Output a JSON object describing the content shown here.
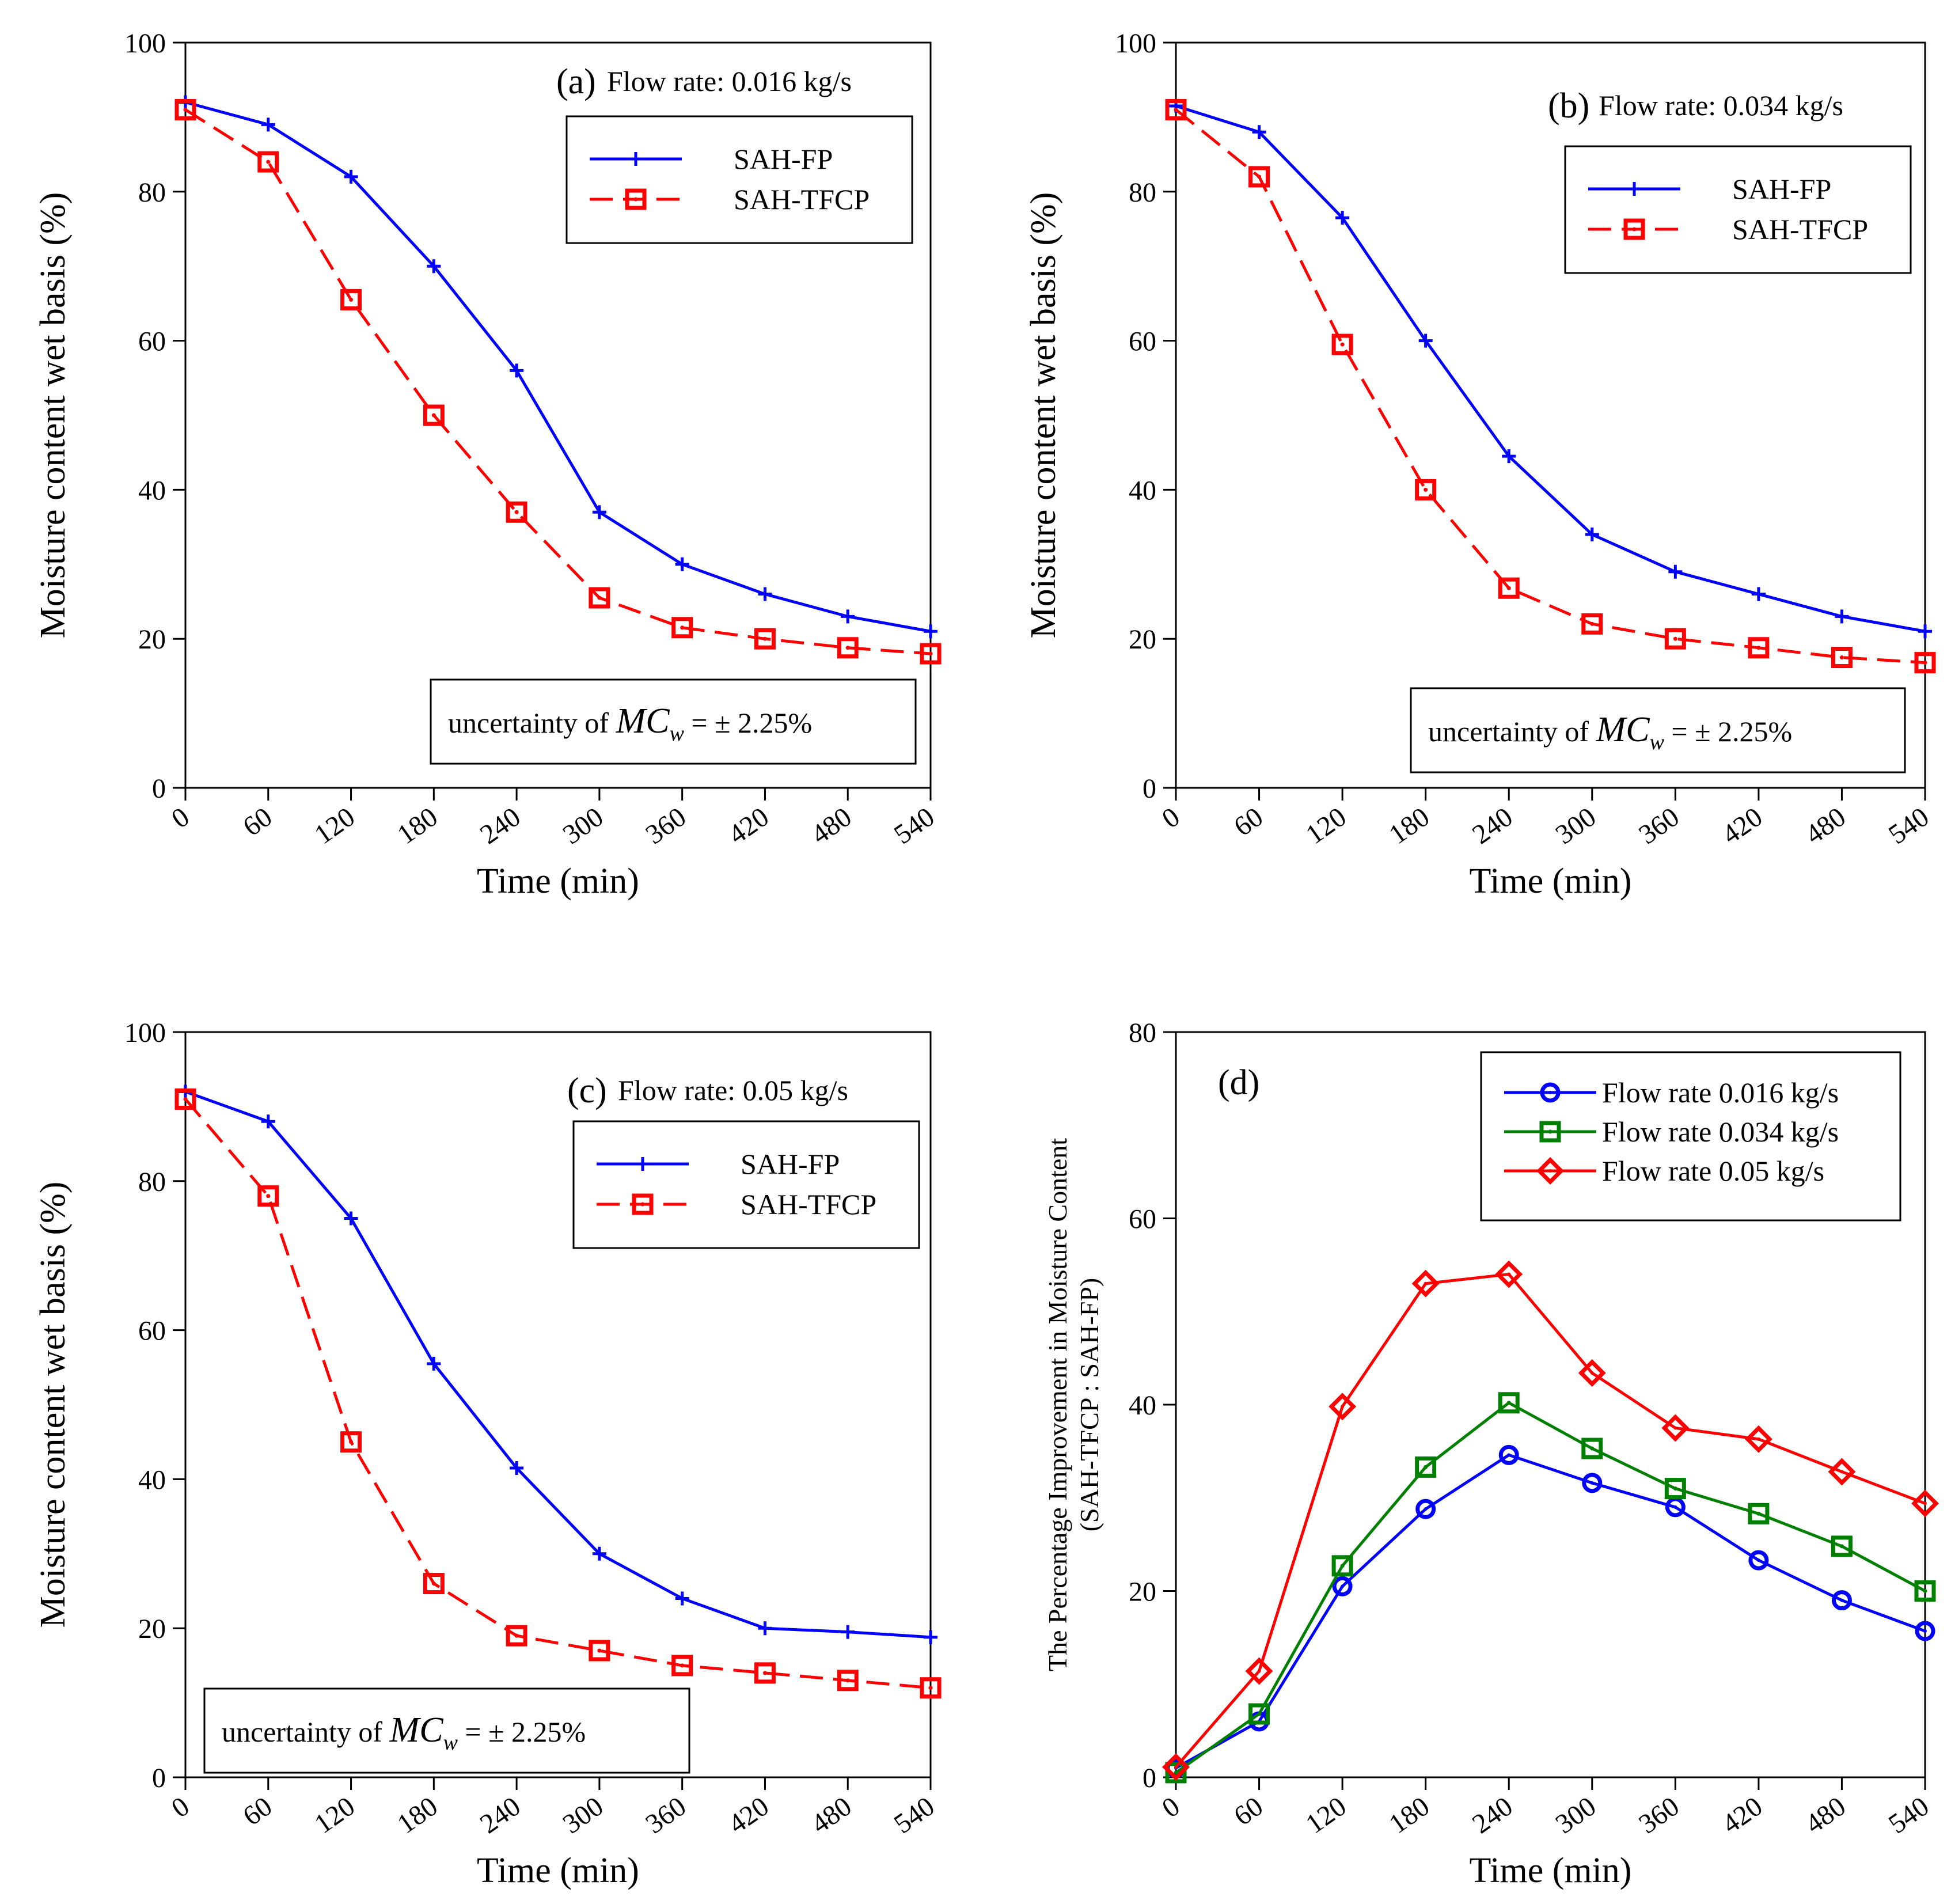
{
  "chart_data": [
    {
      "id": "a",
      "type": "line",
      "panel_label": "(a)",
      "title": "Flow rate: 0.016 kg/s",
      "xlabel": "Time (min)",
      "ylabel": "Moisture content wet basis (%)",
      "xlim": [
        0,
        540
      ],
      "ylim": [
        0,
        100
      ],
      "x_ticks": [
        0,
        60,
        120,
        180,
        240,
        300,
        360,
        420,
        480,
        540
      ],
      "y_ticks": [
        0,
        20,
        40,
        60,
        80,
        100
      ],
      "x": [
        0,
        60,
        120,
        180,
        240,
        300,
        360,
        420,
        480,
        540
      ],
      "series": [
        {
          "name": "SAH-FP",
          "color": "#0000ff",
          "marker": "plus",
          "dash": "solid",
          "values": [
            92,
            89,
            82,
            70,
            56,
            37,
            30,
            26,
            23,
            21
          ]
        },
        {
          "name": "SAH-TFCP",
          "color": "#ff0000",
          "marker": "square",
          "dash": "dashed",
          "values": [
            91,
            84,
            65.5,
            50,
            37,
            25.5,
            21.5,
            20,
            18.8,
            18
          ]
        }
      ],
      "uncertainty": {
        "prefix": "uncertainty of ",
        "symbol": "MC",
        "subscript": "w",
        "suffix": " = ± 2.25%"
      },
      "legend_position": "upper-right",
      "uncertainty_position": "lower-right"
    },
    {
      "id": "b",
      "type": "line",
      "panel_label": "(b)",
      "title": "Flow rate: 0.034 kg/s",
      "xlabel": "Time (min)",
      "ylabel": "Moisture content wet basis (%)",
      "xlim": [
        0,
        540
      ],
      "ylim": [
        0,
        100
      ],
      "x_ticks": [
        0,
        60,
        120,
        180,
        240,
        300,
        360,
        420,
        480,
        540
      ],
      "y_ticks": [
        0,
        20,
        40,
        60,
        80,
        100
      ],
      "x": [
        0,
        60,
        120,
        180,
        240,
        300,
        360,
        420,
        480,
        540
      ],
      "series": [
        {
          "name": "SAH-FP",
          "color": "#0000ff",
          "marker": "plus",
          "dash": "solid",
          "values": [
            91.5,
            88,
            76.5,
            60,
            44.5,
            34,
            29,
            26,
            23,
            21
          ]
        },
        {
          "name": "SAH-TFCP",
          "color": "#ff0000",
          "marker": "square",
          "dash": "dashed",
          "values": [
            91,
            82,
            59.5,
            40,
            26.8,
            22,
            20,
            18.8,
            17.5,
            16.8
          ]
        }
      ],
      "uncertainty": {
        "prefix": "uncertainty of ",
        "symbol": "MC",
        "subscript": "w",
        "suffix": " = ± 2.25%"
      },
      "legend_position": "upper-right",
      "uncertainty_position": "lower-right"
    },
    {
      "id": "c",
      "type": "line",
      "panel_label": "(c)",
      "title": "Flow rate: 0.05 kg/s",
      "xlabel": "Time (min)",
      "ylabel": "Moisture content wet basis (%)",
      "xlim": [
        0,
        540
      ],
      "ylim": [
        0,
        100
      ],
      "x_ticks": [
        0,
        60,
        120,
        180,
        240,
        300,
        360,
        420,
        480,
        540
      ],
      "y_ticks": [
        0,
        20,
        40,
        60,
        80,
        100
      ],
      "x": [
        0,
        60,
        120,
        180,
        240,
        300,
        360,
        420,
        480,
        540
      ],
      "series": [
        {
          "name": "SAH-FP",
          "color": "#0000ff",
          "marker": "plus",
          "dash": "solid",
          "values": [
            92,
            88,
            75,
            55.5,
            41.5,
            30,
            24,
            20,
            19.5,
            18.8
          ]
        },
        {
          "name": "SAH-TFCP",
          "color": "#ff0000",
          "marker": "square",
          "dash": "dashed",
          "values": [
            91,
            78,
            45,
            26,
            19,
            17,
            15,
            14,
            13,
            12
          ]
        }
      ],
      "uncertainty": {
        "prefix": "uncertainty of ",
        "symbol": "MC",
        "subscript": "w",
        "suffix": " = ± 2.25%"
      },
      "legend_position": "upper-right",
      "uncertainty_position": "lower-left"
    },
    {
      "id": "d",
      "type": "line",
      "panel_label": "(d)",
      "title": "",
      "xlabel": "Time (min)",
      "ylabel": "The Percentage Improvement in Moisture Content",
      "ylabel2": "(SAH-TFCP : SAH-FP)",
      "xlim": [
        0,
        540
      ],
      "ylim": [
        0,
        80
      ],
      "x_ticks": [
        0,
        60,
        120,
        180,
        240,
        300,
        360,
        420,
        480,
        540
      ],
      "y_ticks": [
        0,
        20,
        40,
        60,
        80
      ],
      "x": [
        0,
        60,
        120,
        180,
        240,
        300,
        360,
        420,
        480,
        540
      ],
      "series": [
        {
          "name": "Flow rate 0.016 kg/s",
          "color": "#0000ff",
          "marker": "circle",
          "dash": "solid",
          "values": [
            1,
            6,
            20.5,
            28.8,
            34.6,
            31.6,
            29,
            23.3,
            19,
            15.7
          ]
        },
        {
          "name": "Flow rate 0.034 kg/s",
          "color": "#008000",
          "marker": "square",
          "dash": "solid",
          "values": [
            0.5,
            6.8,
            22.7,
            33.3,
            40.2,
            35.3,
            31,
            28.3,
            24.8,
            20
          ]
        },
        {
          "name": "Flow rate 0.05 kg/s",
          "color": "#ff0000",
          "marker": "diamond",
          "dash": "solid",
          "values": [
            1.1,
            11.4,
            39.8,
            53,
            54,
            43.4,
            37.5,
            36.3,
            32.8,
            29.4
          ]
        }
      ],
      "legend_position": "upper-right"
    }
  ]
}
